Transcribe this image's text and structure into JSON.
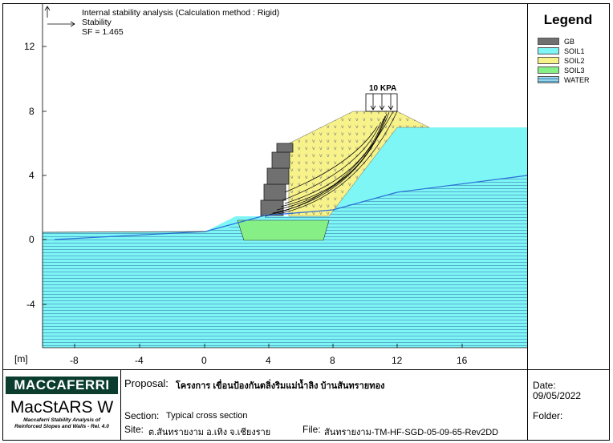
{
  "header": {
    "line1": "Internal stability analysis (Calculation method : Rigid)",
    "line2": "Stability",
    "line3": "SF = 1.465"
  },
  "axes": {
    "unit_label": "[m]",
    "x_ticks": [
      "-8",
      "-4",
      "0",
      "4",
      "8",
      "12",
      "16"
    ],
    "y_ticks": [
      "12",
      "8",
      "4",
      "0",
      "-4"
    ]
  },
  "load": {
    "label": "10 KPA"
  },
  "legend": {
    "title": "Legend",
    "items": [
      {
        "label": "GB",
        "color": "#707070"
      },
      {
        "label": "SOIL1",
        "color": "#7ff6f6"
      },
      {
        "label": "SOIL2",
        "color": "#f7f28a"
      },
      {
        "label": "SOIL3",
        "color": "#86ef86"
      },
      {
        "label": "WATER",
        "color": "#9ad6ea"
      }
    ]
  },
  "colors": {
    "soil1": "#7ff6f6",
    "soil2": "#f7f28a",
    "soil3": "#86ef86",
    "gabion": "#707070",
    "water_line": "#2a6fd6"
  },
  "title_block": {
    "brand": "MACCAFERRI",
    "product": "MacStARS W",
    "tagline_1": "Maccaferri Stability Analysis of",
    "tagline_2": "Reinforced Slopes and Walls - Rel. 4.0",
    "proposal_label": "Proposal:",
    "proposal_value": "โครงการ เขื่อนป้องกันตลิ่งริมแม่น้ำลิง บ้านสันทรายทอง",
    "section_label": "Section:",
    "section_value": "Typical cross section",
    "site_label": "Site:",
    "site_value": "ต.สันทรายงาม อ.เทิง จ.เชียงราย",
    "file_label": "File:",
    "file_value": "สันทรายงาม-TM-HF-SGD-05-09-65-Rev2DD",
    "date_label": "Date:",
    "date_value": "09/05/2022",
    "folder_label": "Folder:"
  }
}
